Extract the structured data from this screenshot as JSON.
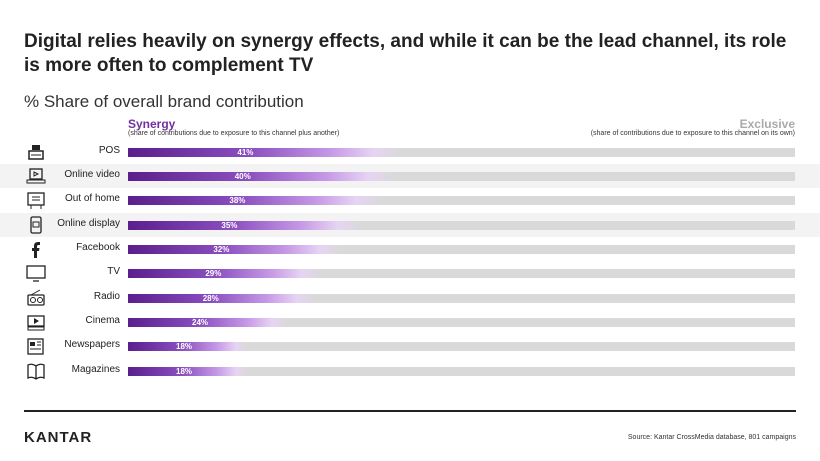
{
  "title": "Digital relies heavily on synergy effects, and while it can be the lead channel, its role is more often to complement TV",
  "subtitle": "% Share of overall brand contribution",
  "legend": {
    "synergy_label": "Synergy",
    "synergy_desc": "(share of contributions due to exposure to this channel plus another)",
    "exclusive_label": "Exclusive",
    "exclusive_desc": "(share of contributions due to exposure to this channel on its own)"
  },
  "colors": {
    "synergy_dark": "#5a1f8c",
    "synergy_light": "#e6d4f3",
    "exclusive": "#d9d9d9"
  },
  "chart_data": {
    "type": "bar",
    "orientation": "horizontal",
    "stacked": true,
    "xlim": [
      0,
      100
    ],
    "categories": [
      "POS",
      "Online video",
      "Out of home",
      "Online display",
      "Facebook",
      "TV",
      "Radio",
      "Cinema",
      "Newspapers",
      "Magazines"
    ],
    "icons": [
      "cash-register-icon",
      "laptop-video-icon",
      "billboard-icon",
      "mobile-display-icon",
      "facebook-icon",
      "tv-icon",
      "radio-icon",
      "cinema-icon",
      "newspaper-icon",
      "magazine-icon"
    ],
    "series": [
      {
        "name": "Synergy",
        "values": [
          41,
          40,
          38,
          35,
          32,
          29,
          28,
          24,
          18,
          18
        ],
        "labels": [
          "41%",
          "40%",
          "38%",
          "35%",
          "32%",
          "29%",
          "28%",
          "24%",
          "18%",
          "18%"
        ]
      },
      {
        "name": "Exclusive",
        "values": [
          59,
          60,
          62,
          65,
          68,
          71,
          72,
          76,
          82,
          82
        ]
      }
    ]
  },
  "footer": {
    "logo": "KANTAR",
    "source": "Source: Kantar CrossMedia database, 801 campaigns"
  }
}
